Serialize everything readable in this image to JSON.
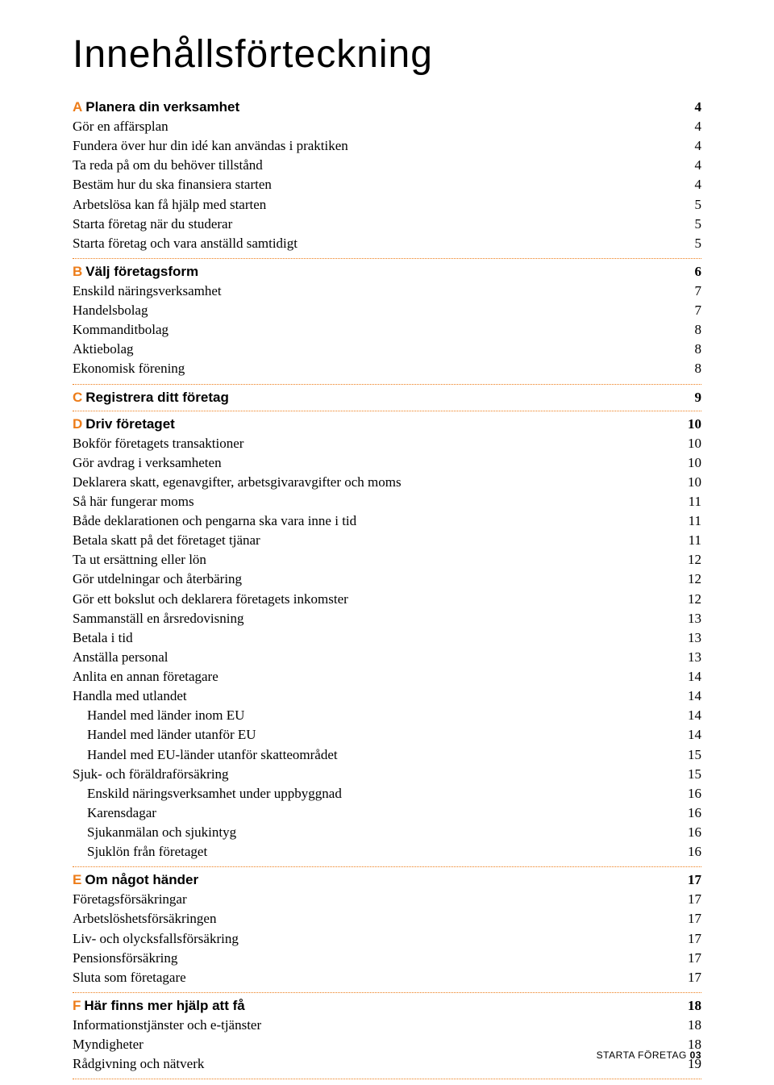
{
  "colors": {
    "accent": "#ed7d1a",
    "text": "#000000",
    "background": "#ffffff"
  },
  "typography": {
    "title_font": "Helvetica Neue",
    "title_size_pt": 36,
    "title_weight": 200,
    "section_heading_font": "Helvetica Neue",
    "section_heading_size_pt": 13,
    "section_heading_weight": 700,
    "body_font": "Georgia",
    "body_size_pt": 13
  },
  "page": {
    "title": "Innehållsförteckning",
    "footer_label": "STARTA FÖRETAG",
    "footer_page": "03"
  },
  "sections": [
    {
      "letter": "A",
      "title": "Planera din verksamhet",
      "page": "4",
      "items": [
        {
          "label": "Gör en affärsplan",
          "page": "4",
          "indent": false
        },
        {
          "label": "Fundera över hur din idé kan användas i praktiken",
          "page": "4",
          "indent": false
        },
        {
          "label": "Ta reda på om du behöver tillstånd",
          "page": "4",
          "indent": false
        },
        {
          "label": "Bestäm hur du ska finansiera starten",
          "page": "4",
          "indent": false
        },
        {
          "label": "Arbetslösa kan få hjälp med starten",
          "page": "5",
          "indent": false
        },
        {
          "label": "Starta företag när du studerar",
          "page": "5",
          "indent": false
        },
        {
          "label": "Starta företag och vara anställd samtidigt",
          "page": "5",
          "indent": false
        }
      ]
    },
    {
      "letter": "B",
      "title": "Välj företagsform",
      "page": "6",
      "items": [
        {
          "label": "Enskild näringsverksamhet",
          "page": "7",
          "indent": false
        },
        {
          "label": "Handelsbolag",
          "page": "7",
          "indent": false
        },
        {
          "label": "Kommanditbolag",
          "page": "8",
          "indent": false
        },
        {
          "label": "Aktiebolag",
          "page": "8",
          "indent": false
        },
        {
          "label": "Ekonomisk förening",
          "page": "8",
          "indent": false
        }
      ]
    },
    {
      "letter": "C",
      "title": "Registrera ditt företag",
      "page": "9",
      "items": []
    },
    {
      "letter": "D",
      "title": "Driv företaget",
      "page": "10",
      "items": [
        {
          "label": "Bokför företagets transaktioner",
          "page": "10",
          "indent": false
        },
        {
          "label": "Gör avdrag i verksamheten",
          "page": "10",
          "indent": false
        },
        {
          "label": "Deklarera skatt, egenavgifter, arbetsgivaravgifter och moms",
          "page": "10",
          "indent": false
        },
        {
          "label": "Så här fungerar moms",
          "page": "11",
          "indent": false
        },
        {
          "label": "Både deklarationen och pengarna ska vara inne i tid",
          "page": "11",
          "indent": false
        },
        {
          "label": "Betala skatt på det företaget tjänar",
          "page": "11",
          "indent": false
        },
        {
          "label": "Ta ut ersättning eller lön",
          "page": "12",
          "indent": false
        },
        {
          "label": "Gör utdelningar och återbäring",
          "page": "12",
          "indent": false
        },
        {
          "label": "Gör ett bokslut och deklarera företagets inkomster",
          "page": "12",
          "indent": false
        },
        {
          "label": "Sammanställ en årsredovisning",
          "page": "13",
          "indent": false
        },
        {
          "label": "Betala i tid",
          "page": "13",
          "indent": false
        },
        {
          "label": "Anställa personal",
          "page": "13",
          "indent": false
        },
        {
          "label": "Anlita en annan företagare",
          "page": "14",
          "indent": false
        },
        {
          "label": "Handla med utlandet",
          "page": "14",
          "indent": false
        },
        {
          "label": "Handel med länder inom EU",
          "page": "14",
          "indent": true
        },
        {
          "label": "Handel med länder utanför EU",
          "page": "14",
          "indent": true
        },
        {
          "label": "Handel med EU-länder utanför skatteområdet",
          "page": "15",
          "indent": true
        },
        {
          "label": "Sjuk- och föräldraförsäkring",
          "page": "15",
          "indent": false
        },
        {
          "label": "Enskild näringsverksamhet under uppbyggnad",
          "page": "16",
          "indent": true
        },
        {
          "label": "Karensdagar",
          "page": "16",
          "indent": true
        },
        {
          "label": "Sjukanmälan och sjukintyg",
          "page": "16",
          "indent": true
        },
        {
          "label": "Sjuklön från företaget",
          "page": "16",
          "indent": true
        }
      ]
    },
    {
      "letter": "E",
      "title": "Om något händer",
      "page": "17",
      "items": [
        {
          "label": "Företagsförsäkringar",
          "page": "17",
          "indent": false
        },
        {
          "label": "Arbetslöshetsförsäkringen",
          "page": "17",
          "indent": false
        },
        {
          "label": "Liv- och olycksfallsförsäkring",
          "page": "17",
          "indent": false
        },
        {
          "label": "Pensionsförsäkring",
          "page": "17",
          "indent": false
        },
        {
          "label": "Sluta som företagare",
          "page": "17",
          "indent": false
        }
      ]
    },
    {
      "letter": "F",
      "title": "Här finns mer hjälp att få",
      "page": "18",
      "items": [
        {
          "label": "Informationstjänster och e-tjänster",
          "page": "18",
          "indent": false
        },
        {
          "label": "Myndigheter",
          "page": "18",
          "indent": false
        },
        {
          "label": "Rådgivning och nätverk",
          "page": "19",
          "indent": false
        }
      ]
    }
  ]
}
